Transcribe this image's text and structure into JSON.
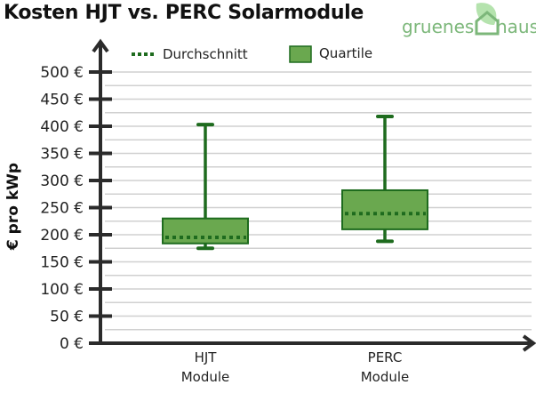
{
  "title": "Kosten HJT vs. PERC Solarmodule",
  "logo": {
    "left": "gruenes",
    "right": "haus",
    "icon": "house-leaf-icon"
  },
  "legend": {
    "mean_label": "Durchschnitt",
    "quartile_label": "Quartile"
  },
  "colors": {
    "box_fill": "#6aa84f",
    "box_stroke": "#1e6b1e",
    "mean": "#1e6b1e",
    "grid": "#d0d0d0",
    "axis": "#2b2b2b",
    "logo": "#7cb77a"
  },
  "chart_data": {
    "type": "box",
    "title": "Kosten HJT vs. PERC Solarmodule",
    "xlabel": "",
    "ylabel": "€ pro kWp",
    "ylim": [
      0,
      500
    ],
    "yticks": [
      "0 €",
      "50 €",
      "100 €",
      "150 €",
      "200 €",
      "250 €",
      "300 €",
      "350 €",
      "400 €",
      "450 €",
      "500 €"
    ],
    "grid": true,
    "legend": [
      "Durchschnitt",
      "Quartile"
    ],
    "categories": [
      "HJT Module",
      "PERC Module"
    ],
    "series": [
      {
        "name": "HJT Module",
        "min": 175,
        "q1": 184,
        "mean": 195,
        "q3": 230,
        "max": 403
      },
      {
        "name": "PERC Module",
        "min": 188,
        "q1": 210,
        "mean": 239,
        "q3": 282,
        "max": 418
      }
    ]
  },
  "xaxis": {
    "labels": [
      [
        "HJT",
        "Module"
      ],
      [
        "PERC",
        "Module"
      ]
    ]
  }
}
